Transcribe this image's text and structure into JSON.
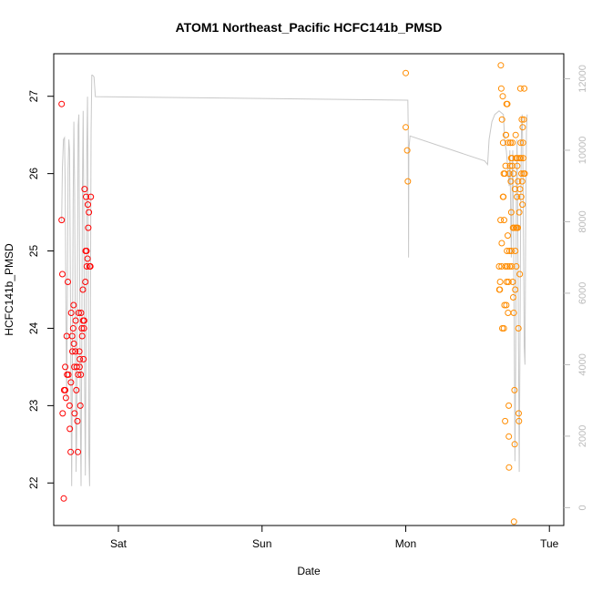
{
  "chart_data": {
    "type": "scatter",
    "title": "ATOM1 Northeast_Pacific HCFC141b_PMSD",
    "xlabel": "Date",
    "ylabel": "HCFC141b_PMSD",
    "x_ticks": [
      {
        "label": "Sat",
        "day": 1.0
      },
      {
        "label": "Sun",
        "day": 2.0
      },
      {
        "label": "Mon",
        "day": 3.0
      },
      {
        "label": "Tue",
        "day": 4.0
      }
    ],
    "xlim_days": [
      0.55,
      4.1
    ],
    "ylim": [
      21.45,
      27.55
    ],
    "y_ticks": [
      22,
      23,
      24,
      25,
      26,
      27
    ],
    "y2_ticks": [
      0,
      2000,
      4000,
      6000,
      8000,
      10000,
      12000
    ],
    "y2lim": [
      -500,
      12700
    ],
    "colors": {
      "series1": "#ff0000",
      "series2": "#ff8c00",
      "altitude": "#c8c8c8",
      "right_axis": "#bbbbbb"
    },
    "series": [
      {
        "color": "#ff0000",
        "points": [
          [
            0.605,
            26.9
          ],
          [
            0.605,
            25.4
          ],
          [
            0.61,
            24.7
          ],
          [
            0.612,
            22.9
          ],
          [
            0.62,
            21.8
          ],
          [
            0.622,
            23.2
          ],
          [
            0.63,
            23.5
          ],
          [
            0.63,
            23.2
          ],
          [
            0.635,
            23.1
          ],
          [
            0.64,
            23.9
          ],
          [
            0.643,
            23.4
          ],
          [
            0.648,
            24.6
          ],
          [
            0.652,
            23.4
          ],
          [
            0.66,
            23.0
          ],
          [
            0.662,
            22.7
          ],
          [
            0.668,
            22.4
          ],
          [
            0.67,
            23.3
          ],
          [
            0.672,
            24.2
          ],
          [
            0.678,
            23.9
          ],
          [
            0.68,
            23.7
          ],
          [
            0.685,
            24.0
          ],
          [
            0.688,
            24.3
          ],
          [
            0.69,
            23.8
          ],
          [
            0.693,
            23.5
          ],
          [
            0.695,
            22.9
          ],
          [
            0.7,
            23.7
          ],
          [
            0.703,
            24.1
          ],
          [
            0.707,
            23.2
          ],
          [
            0.71,
            23.5
          ],
          [
            0.715,
            22.8
          ],
          [
            0.718,
            22.4
          ],
          [
            0.72,
            23.4
          ],
          [
            0.724,
            24.2
          ],
          [
            0.728,
            23.7
          ],
          [
            0.73,
            23.5
          ],
          [
            0.732,
            23.6
          ],
          [
            0.735,
            23.0
          ],
          [
            0.738,
            23.4
          ],
          [
            0.74,
            24.2
          ],
          [
            0.745,
            24.0
          ],
          [
            0.748,
            23.9
          ],
          [
            0.753,
            24.5
          ],
          [
            0.755,
            24.1
          ],
          [
            0.757,
            23.6
          ],
          [
            0.76,
            24.0
          ],
          [
            0.762,
            24.1
          ],
          [
            0.765,
            25.8
          ],
          [
            0.77,
            24.6
          ],
          [
            0.772,
            25.0
          ],
          [
            0.775,
            25.7
          ],
          [
            0.778,
            25.0
          ],
          [
            0.78,
            24.8
          ],
          [
            0.785,
            24.9
          ],
          [
            0.788,
            25.6
          ],
          [
            0.79,
            25.3
          ],
          [
            0.795,
            25.5
          ],
          [
            0.8,
            24.8
          ],
          [
            0.805,
            24.8
          ],
          [
            0.808,
            25.7
          ]
        ]
      },
      {
        "color": "#ff8c00",
        "points": [
          [
            3.0,
            27.3
          ],
          [
            3.0,
            26.6
          ],
          [
            3.01,
            26.3
          ],
          [
            3.015,
            25.9
          ],
          [
            3.65,
            24.8
          ],
          [
            3.652,
            24.5
          ],
          [
            3.655,
            24.5
          ],
          [
            3.657,
            24.6
          ],
          [
            3.66,
            25.4
          ],
          [
            3.662,
            27.4
          ],
          [
            3.665,
            27.1
          ],
          [
            3.667,
            24.8
          ],
          [
            3.668,
            25.1
          ],
          [
            3.67,
            26.7
          ],
          [
            3.672,
            24.0
          ],
          [
            3.675,
            27.0
          ],
          [
            3.677,
            25.7
          ],
          [
            3.678,
            26.4
          ],
          [
            3.68,
            25.7
          ],
          [
            3.682,
            26.0
          ],
          [
            3.683,
            24.0
          ],
          [
            3.685,
            25.4
          ],
          [
            3.687,
            24.3
          ],
          [
            3.69,
            26.0
          ],
          [
            3.692,
            22.8
          ],
          [
            3.694,
            24.8
          ],
          [
            3.695,
            26.1
          ],
          [
            3.697,
            26.5
          ],
          [
            3.698,
            26.5
          ],
          [
            3.7,
            24.3
          ],
          [
            3.702,
            26.9
          ],
          [
            3.703,
            24.6
          ],
          [
            3.705,
            25.0
          ],
          [
            3.707,
            26.9
          ],
          [
            3.708,
            24.8
          ],
          [
            3.71,
            25.2
          ],
          [
            3.712,
            24.2
          ],
          [
            3.713,
            26.4
          ],
          [
            3.715,
            24.6
          ],
          [
            3.717,
            23.0
          ],
          [
            3.718,
            22.6
          ],
          [
            3.719,
            22.2
          ],
          [
            3.72,
            26.0
          ],
          [
            3.722,
            25.0
          ],
          [
            3.724,
            24.8
          ],
          [
            3.726,
            26.1
          ],
          [
            3.728,
            26.4
          ],
          [
            3.73,
            26.4
          ],
          [
            3.732,
            25.9
          ],
          [
            3.734,
            26.2
          ],
          [
            3.735,
            25.5
          ],
          [
            3.737,
            25.0
          ],
          [
            3.738,
            24.8
          ],
          [
            3.74,
            26.2
          ],
          [
            3.742,
            26.1
          ],
          [
            3.743,
            26.4
          ],
          [
            3.745,
            24.6
          ],
          [
            3.747,
            25.3
          ],
          [
            3.748,
            24.4
          ],
          [
            3.75,
            26.0
          ],
          [
            3.752,
            24.2
          ],
          [
            3.753,
            21.5
          ],
          [
            3.755,
            25.3
          ],
          [
            3.757,
            23.2
          ],
          [
            3.758,
            22.5
          ],
          [
            3.76,
            25.8
          ],
          [
            3.762,
            24.5
          ],
          [
            3.763,
            25.0
          ],
          [
            3.765,
            26.5
          ],
          [
            3.767,
            25.3
          ],
          [
            3.768,
            26.2
          ],
          [
            3.77,
            24.8
          ],
          [
            3.772,
            25.3
          ],
          [
            3.774,
            25.7
          ],
          [
            3.776,
            26.1
          ],
          [
            3.778,
            26.2
          ],
          [
            3.78,
            25.3
          ],
          [
            3.782,
            25.9
          ],
          [
            3.784,
            24.0
          ],
          [
            3.786,
            22.9
          ],
          [
            3.788,
            22.8
          ],
          [
            3.79,
            25.5
          ],
          [
            3.792,
            26.2
          ],
          [
            3.794,
            24.7
          ],
          [
            3.796,
            25.8
          ],
          [
            3.798,
            27.1
          ],
          [
            3.8,
            26.4
          ],
          [
            3.802,
            26.2
          ],
          [
            3.804,
            25.7
          ],
          [
            3.806,
            26.0
          ],
          [
            3.808,
            26.7
          ],
          [
            3.81,
            25.9
          ],
          [
            3.812,
            25.6
          ],
          [
            3.814,
            26.6
          ],
          [
            3.816,
            26.4
          ],
          [
            3.818,
            26.2
          ],
          [
            3.82,
            26.0
          ],
          [
            3.822,
            26.7
          ],
          [
            3.825,
            27.1
          ],
          [
            3.828,
            26.0
          ]
        ]
      }
    ],
    "altitude_line": {
      "color": "#c8c8c8",
      "points": [
        [
          0.605,
          8000
        ],
        [
          0.61,
          9500
        ],
        [
          0.618,
          10300
        ],
        [
          0.625,
          10350
        ],
        [
          0.63,
          9000
        ],
        [
          0.635,
          5500
        ],
        [
          0.64,
          3000
        ],
        [
          0.645,
          6000
        ],
        [
          0.65,
          9500
        ],
        [
          0.655,
          10300
        ],
        [
          0.66,
          10000
        ],
        [
          0.665,
          7000
        ],
        [
          0.67,
          3500
        ],
        [
          0.675,
          600
        ],
        [
          0.68,
          4000
        ],
        [
          0.685,
          8500
        ],
        [
          0.69,
          10800
        ],
        [
          0.695,
          9000
        ],
        [
          0.7,
          5000
        ],
        [
          0.705,
          1000
        ],
        [
          0.71,
          2000
        ],
        [
          0.715,
          6500
        ],
        [
          0.72,
          10700
        ],
        [
          0.725,
          11000
        ],
        [
          0.73,
          7000
        ],
        [
          0.735,
          2500
        ],
        [
          0.74,
          600
        ],
        [
          0.745,
          4500
        ],
        [
          0.75,
          9000
        ],
        [
          0.755,
          11100
        ],
        [
          0.76,
          8000
        ],
        [
          0.765,
          3500
        ],
        [
          0.77,
          900
        ],
        [
          0.775,
          5000
        ],
        [
          0.78,
          10000
        ],
        [
          0.785,
          11500
        ],
        [
          0.79,
          7000
        ],
        [
          0.795,
          1500
        ],
        [
          0.8,
          600
        ],
        [
          0.805,
          5000
        ],
        [
          0.81,
          10500
        ],
        [
          0.815,
          12100
        ],
        [
          0.82,
          12100
        ],
        [
          0.83,
          12050
        ],
        [
          0.84,
          11500
        ],
        [
          3.015,
          11400
        ],
        [
          3.018,
          10500
        ],
        [
          3.02,
          7000
        ],
        [
          3.022,
          10000
        ],
        [
          3.03,
          10400
        ],
        [
          3.55,
          9700
        ],
        [
          3.57,
          9600
        ],
        [
          3.58,
          10300
        ],
        [
          3.6,
          10800
        ],
        [
          3.62,
          11000
        ],
        [
          3.65,
          11100
        ],
        [
          3.68,
          11000
        ],
        [
          3.69,
          10200
        ],
        [
          3.7,
          10000
        ],
        [
          3.71,
          9500
        ],
        [
          3.72,
          9000
        ],
        [
          3.725,
          10000
        ],
        [
          3.73,
          8500
        ],
        [
          3.735,
          7000
        ],
        [
          3.74,
          9000
        ],
        [
          3.745,
          10000
        ],
        [
          3.75,
          8000
        ],
        [
          3.755,
          5000
        ],
        [
          3.76,
          1300
        ],
        [
          3.765,
          4000
        ],
        [
          3.77,
          8500
        ],
        [
          3.775,
          10300
        ],
        [
          3.78,
          8000
        ],
        [
          3.785,
          4500
        ],
        [
          3.79,
          1000
        ],
        [
          3.795,
          4500
        ],
        [
          3.8,
          8500
        ],
        [
          3.805,
          10500
        ],
        [
          3.81,
          11000
        ],
        [
          3.815,
          10000
        ],
        [
          3.82,
          7500
        ],
        [
          3.825,
          4500
        ],
        [
          3.83,
          4000
        ],
        [
          3.835,
          8000
        ],
        [
          3.84,
          10500
        ],
        [
          3.845,
          11000
        ]
      ]
    }
  }
}
